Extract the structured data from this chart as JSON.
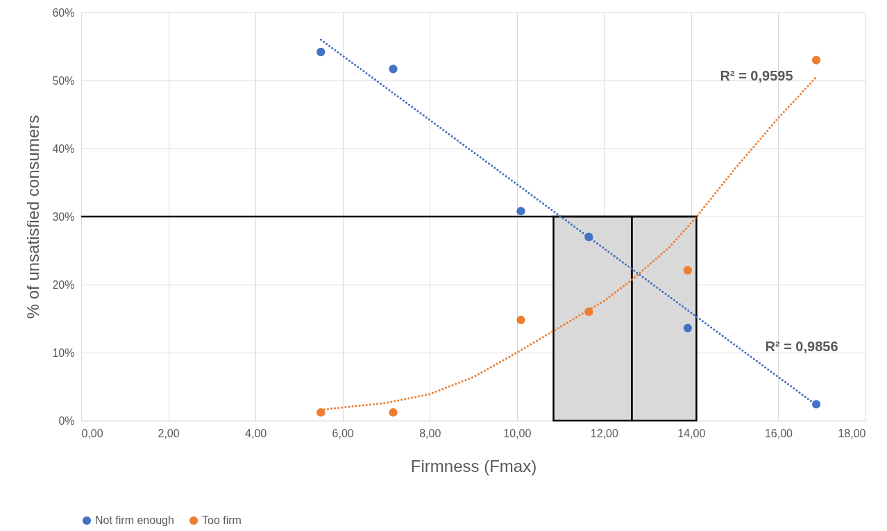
{
  "chart_data": {
    "type": "scatter",
    "xlabel": "Firmness (Fmax)",
    "ylabel": "% of unsatisfied consumers",
    "series": [
      {
        "type": "line",
        "color": "#4472c4",
        "line_style": "dotted",
        "marker": "none",
        "x": [
          5.5,
          16.87
        ],
        "values": [
          56.0,
          2.3
        ]
      },
      {
        "type": "line",
        "color": "#ed7d31",
        "line_style": "dotted",
        "marker": "none",
        "x": [
          5.5,
          7,
          8,
          9,
          10,
          11,
          12,
          12.64,
          13.5,
          14.1,
          15,
          16,
          16.87
        ],
        "values": [
          1.6,
          2.6,
          3.9,
          6.4,
          10.0,
          13.8,
          17.6,
          20.7,
          25.5,
          29.8,
          37,
          44.5,
          50.5
        ]
      },
      {
        "name": "Not firm enough",
        "color": "#4472c4",
        "x": [
          5.5,
          7.16,
          10.09,
          11.65,
          13.92,
          16.87
        ],
        "values": [
          54.2,
          51.7,
          30.8,
          27.0,
          13.6,
          2.4
        ]
      },
      {
        "name": "Too firm",
        "color": "#ed7d31",
        "x": [
          5.5,
          7.16,
          10.09,
          11.65,
          13.92,
          16.87
        ],
        "values": [
          1.2,
          1.2,
          14.8,
          16.0,
          22.1,
          53.0
        ]
      }
    ],
    "marker": "circle",
    "annotations": [
      "R² = 0,9595",
      "R² = 0,9856"
    ],
    "ref_lines": [
      {
        "axis": "y",
        "value": 30,
        "color": "#000000"
      }
    ],
    "bands": [
      {
        "axis": "x",
        "from": 10.84,
        "to": 12.64,
        "color": "#d9d9d9"
      },
      {
        "axis": "x",
        "from": 12.64,
        "to": 14.12,
        "color": "#d9d9d9"
      }
    ],
    "xlim": [
      0,
      18
    ],
    "xticks": [
      {
        "value": 0,
        "label": "0,00"
      },
      {
        "value": 2,
        "label": "2,00"
      },
      {
        "value": 4,
        "label": "4,00"
      },
      {
        "value": 6,
        "label": "6,00"
      },
      {
        "value": 8,
        "label": "8,00"
      },
      {
        "value": 10,
        "label": "10,00"
      },
      {
        "value": 12,
        "label": "12,00"
      },
      {
        "value": 14,
        "label": "14,00"
      },
      {
        "value": 16,
        "label": "16,00"
      },
      {
        "value": 18,
        "label": "18,00"
      }
    ],
    "ylim": [
      0,
      60
    ],
    "yticks": [
      {
        "value": 0,
        "label": "0%"
      },
      {
        "value": 10,
        "label": "10%"
      },
      {
        "value": 20,
        "label": "20%"
      },
      {
        "value": 30,
        "label": "30%"
      },
      {
        "value": 40,
        "label": "40%"
      },
      {
        "value": 50,
        "label": "50%"
      },
      {
        "value": 60,
        "label": "60%"
      }
    ],
    "grid": true,
    "legend": "bottom"
  }
}
